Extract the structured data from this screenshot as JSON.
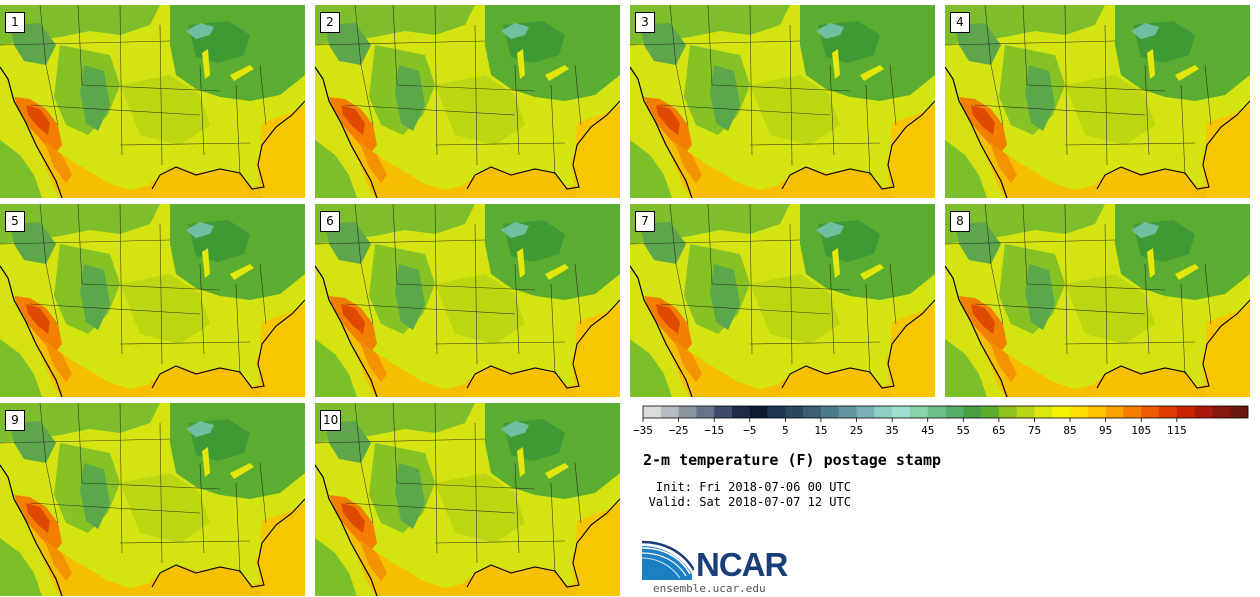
{
  "panels": [
    {
      "label": "1"
    },
    {
      "label": "2"
    },
    {
      "label": "3"
    },
    {
      "label": "4"
    },
    {
      "label": "5"
    },
    {
      "label": "6"
    },
    {
      "label": "7"
    },
    {
      "label": "8"
    },
    {
      "label": "9"
    },
    {
      "label": "10"
    }
  ],
  "colorbar": {
    "colors": [
      "#d9dde0",
      "#b6bcc3",
      "#8d97a4",
      "#66738a",
      "#3f4b6a",
      "#1f2a47",
      "#0b1a33",
      "#1c3550",
      "#2a4860",
      "#3c5f76",
      "#4e7a8e",
      "#64949f",
      "#7bb1b5",
      "#8fcfc4",
      "#9fe0d0",
      "#8bd3a8",
      "#6cc08a",
      "#53ad6b",
      "#48a040",
      "#5aac2e",
      "#8cc21c",
      "#b8d616",
      "#dfe80c",
      "#f7f200",
      "#ffe000",
      "#fdc500",
      "#f9a200",
      "#f57d00",
      "#ee5a00",
      "#df3900",
      "#c82300",
      "#aa1a0c",
      "#8a1610",
      "#6b180d"
    ],
    "ticks": [
      "−35",
      "−25",
      "−15",
      "−5",
      "5",
      "15",
      "25",
      "35",
      "45",
      "55",
      "65",
      "75",
      "85",
      "95",
      "105",
      "115"
    ]
  },
  "title": "2-m temperature (F) postage stamp",
  "init": {
    "label": "Init:",
    "value": "Fri 2018-07-06 00 UTC"
  },
  "valid": {
    "label": "Valid:",
    "value": "Sat 2018-07-07 12 UTC"
  },
  "logo": {
    "text": "NCAR",
    "url": "ensemble.ucar.edu"
  }
}
